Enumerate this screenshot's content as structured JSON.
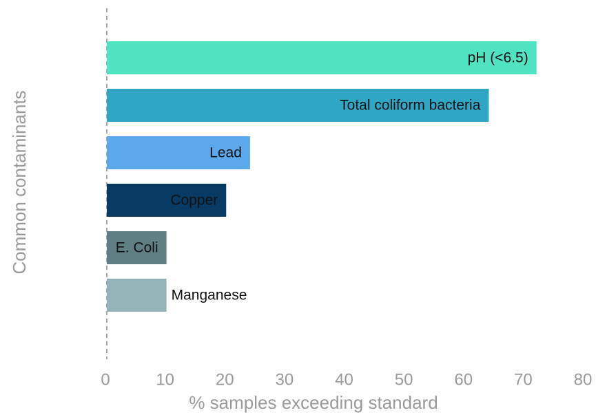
{
  "chart_data": {
    "type": "bar",
    "orientation": "horizontal",
    "xlabel": "% samples exceeding standard",
    "ylabel": "Common contaminants",
    "categories": [
      "pH (<6.5)",
      "Total coliform bacteria",
      "Lead",
      "Copper",
      "E. Coli",
      "Manganese"
    ],
    "values": [
      72,
      64,
      24,
      20,
      10,
      10
    ],
    "colors": [
      "#50e3c2",
      "#2fa6c4",
      "#5ba8ea",
      "#083a63",
      "#5f7f82",
      "#93b3b6"
    ],
    "xlim": [
      0,
      80
    ],
    "xticks": [
      0,
      10,
      20,
      30,
      40,
      50,
      60,
      70,
      80
    ],
    "grid": false
  }
}
